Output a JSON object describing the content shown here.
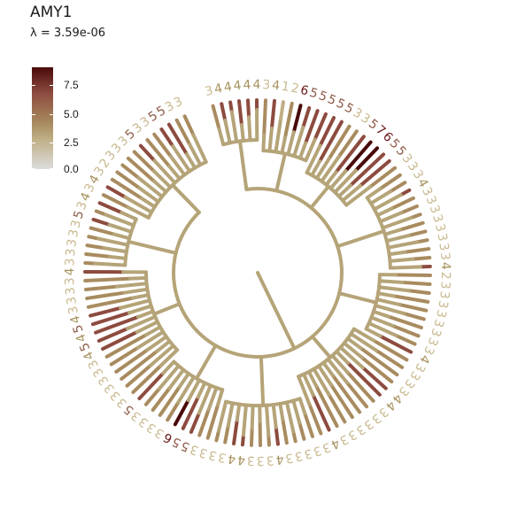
{
  "header": {
    "title": "AMY1",
    "subtitle": "λ = 3.59e-06"
  },
  "legend": {
    "ticks": [
      "7.5",
      "5.0",
      "2.5",
      "0.0"
    ],
    "colors": [
      "#dcdcdc",
      "#bfae85",
      "#a88b5f",
      "#8d4b3f",
      "#4a0a0a"
    ]
  },
  "tree": {
    "tip_labels": [
      "3",
      "4",
      "4",
      "4",
      "4",
      "4",
      "3",
      "4",
      "1",
      "2",
      "6",
      "5",
      "5",
      "5",
      "5",
      "5",
      "3",
      "3",
      "5",
      "7",
      "6",
      "5",
      "5",
      "3",
      "3",
      "3",
      "4",
      "3",
      "3",
      "3",
      "3",
      "3",
      "3",
      "3",
      "3",
      "4",
      "2",
      "3",
      "3",
      "3",
      "3",
      "3",
      "3",
      "3",
      "3",
      "4",
      "3",
      "3",
      "3",
      "3",
      "4",
      "4",
      "3",
      "3",
      "3",
      "3",
      "3",
      "3",
      "4",
      "3",
      "3",
      "3",
      "3",
      "3",
      "4",
      "3",
      "3",
      "3",
      "4",
      "4",
      "3",
      "3",
      "3",
      "3",
      "5",
      "5",
      "6",
      "3",
      "3",
      "3",
      "3",
      "5",
      "3",
      "3",
      "3",
      "3",
      "3",
      "3",
      "4",
      "5",
      "4",
      "5",
      "4",
      "3",
      "3",
      "3",
      "3",
      "4",
      "3",
      "3",
      "3",
      "3",
      "3",
      "5",
      "3",
      "4",
      "3",
      "4",
      "3",
      "2",
      "3",
      "3",
      "3",
      "5",
      "3",
      "3",
      "5",
      "5",
      "3",
      "3"
    ]
  }
}
